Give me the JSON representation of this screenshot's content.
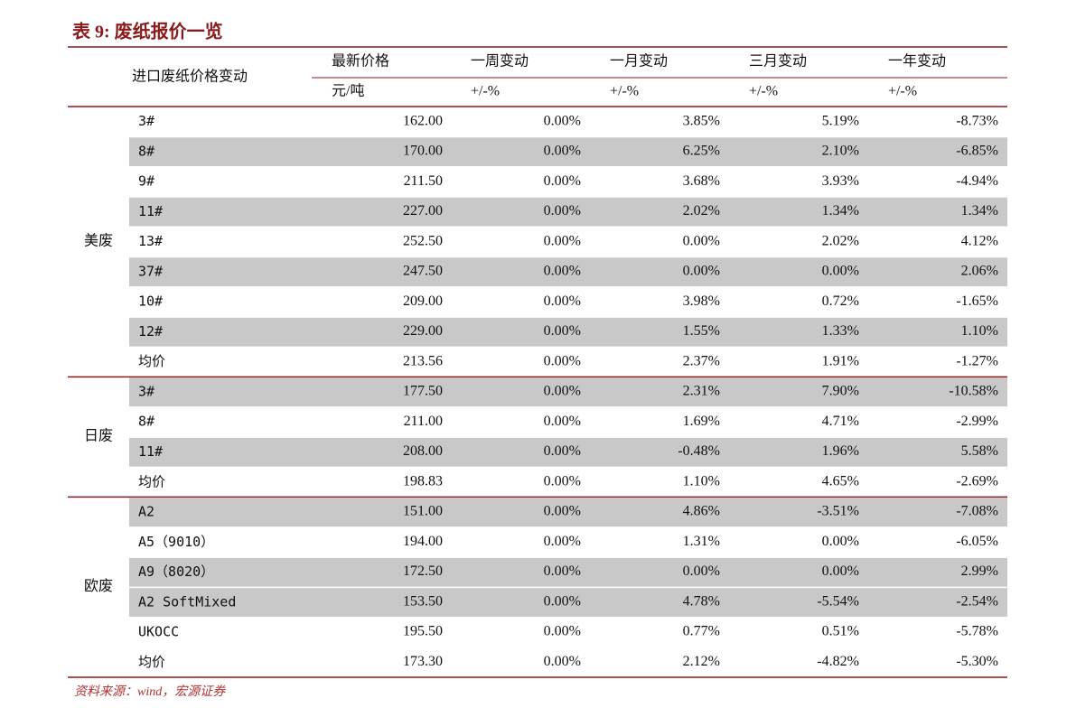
{
  "title": "表 9:  废纸报价一览",
  "header": {
    "label": "进口废纸价格变动",
    "columns": [
      "最新价格",
      "一周变动",
      "一月变动",
      "三月变动",
      "一年变动"
    ],
    "units": [
      "元/吨",
      "+/-%",
      "+/-%",
      "+/-%",
      "+/-%"
    ]
  },
  "groups": [
    {
      "name": "美废",
      "rows": [
        {
          "name": "3#",
          "cells": [
            "162.00",
            "0.00%",
            "3.85%",
            "5.19%",
            "-8.73%"
          ],
          "shaded": false
        },
        {
          "name": "8#",
          "cells": [
            "170.00",
            "0.00%",
            "6.25%",
            "2.10%",
            "-6.85%"
          ],
          "shaded": true
        },
        {
          "name": "9#",
          "cells": [
            "211.50",
            "0.00%",
            "3.68%",
            "3.93%",
            "-4.94%"
          ],
          "shaded": false
        },
        {
          "name": "11#",
          "cells": [
            "227.00",
            "0.00%",
            "2.02%",
            "1.34%",
            "1.34%"
          ],
          "shaded": true
        },
        {
          "name": "13#",
          "cells": [
            "252.50",
            "0.00%",
            "0.00%",
            "2.02%",
            "4.12%"
          ],
          "shaded": false
        },
        {
          "name": "37#",
          "cells": [
            "247.50",
            "0.00%",
            "0.00%",
            "0.00%",
            "2.06%"
          ],
          "shaded": true
        },
        {
          "name": "10#",
          "cells": [
            "209.00",
            "0.00%",
            "3.98%",
            "0.72%",
            "-1.65%"
          ],
          "shaded": false
        },
        {
          "name": "12#",
          "cells": [
            "229.00",
            "0.00%",
            "1.55%",
            "1.33%",
            "1.10%"
          ],
          "shaded": true
        },
        {
          "name": "均价",
          "cells": [
            "213.56",
            "0.00%",
            "2.37%",
            "1.91%",
            "-1.27%"
          ],
          "shaded": false
        }
      ]
    },
    {
      "name": "日废",
      "rows": [
        {
          "name": "3#",
          "cells": [
            "177.50",
            "0.00%",
            "2.31%",
            "7.90%",
            "-10.58%"
          ],
          "shaded": true
        },
        {
          "name": "8#",
          "cells": [
            "211.00",
            "0.00%",
            "1.69%",
            "4.71%",
            "-2.99%"
          ],
          "shaded": false
        },
        {
          "name": "11#",
          "cells": [
            "208.00",
            "0.00%",
            "-0.48%",
            "1.96%",
            "5.58%"
          ],
          "shaded": true
        },
        {
          "name": "均价",
          "cells": [
            "198.83",
            "0.00%",
            "1.10%",
            "4.65%",
            "-2.69%"
          ],
          "shaded": false
        }
      ]
    },
    {
      "name": "欧废",
      "rows": [
        {
          "name": "A2",
          "cells": [
            "151.00",
            "0.00%",
            "4.86%",
            "-3.51%",
            "-7.08%"
          ],
          "shaded": true
        },
        {
          "name": "A5（9010）",
          "cells": [
            "194.00",
            "0.00%",
            "1.31%",
            "0.00%",
            "-6.05%"
          ],
          "shaded": false
        },
        {
          "name": "A9（8020）",
          "cells": [
            "172.50",
            "0.00%",
            "0.00%",
            "0.00%",
            "2.99%"
          ],
          "shaded": true
        },
        {
          "name": "A2 SoftMixed",
          "cells": [
            "153.50",
            "0.00%",
            "4.78%",
            "-5.54%",
            "-2.54%"
          ],
          "shaded": true
        },
        {
          "name": "UKOCC",
          "cells": [
            "195.50",
            "0.00%",
            "0.77%",
            "0.51%",
            "-5.78%"
          ],
          "shaded": false
        },
        {
          "name": "均价",
          "cells": [
            "173.30",
            "0.00%",
            "2.12%",
            "-4.82%",
            "-5.30%"
          ],
          "shaded": false
        }
      ]
    }
  ],
  "source": "资料来源：wind，宏源证券"
}
